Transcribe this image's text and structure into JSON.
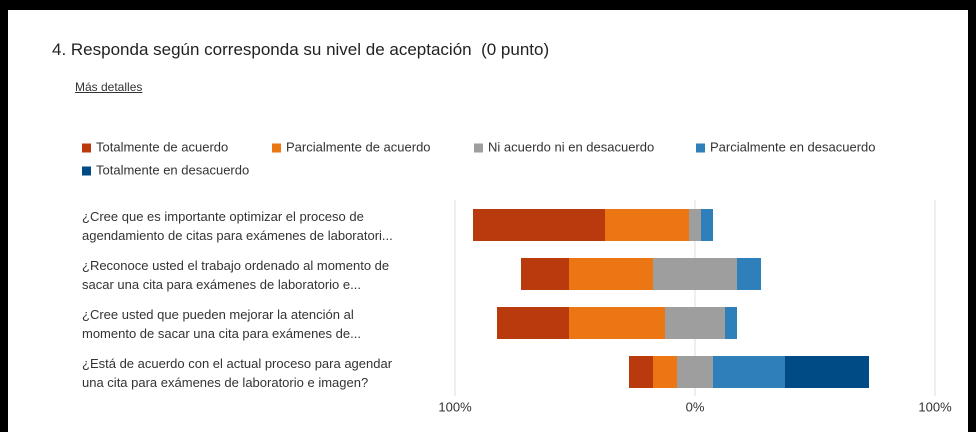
{
  "chart_data": {
    "type": "diverging_bar",
    "title": "4. Responda según corresponda su nivel de aceptación  (0 punto)",
    "details_link": "Más detalles",
    "categories": [
      "¿Cree que es importante optimizar el proceso de\nagendamiento de citas para exámenes de laboratori...",
      "¿Reconoce usted el trabajo ordenado al momento de\nsacar una cita para exámenes de laboratorio e...",
      "¿Cree usted que pueden mejorar la atención al\nmomento de sacar una cita para exámenes de...",
      "¿Está de acuerdo con el actual proceso para agendar\nuna cita para exámenes de laboratorio e imagen?"
    ],
    "series": [
      {
        "name": "Totalmente de acuerdo",
        "color": "#b93a0c",
        "values": [
          55,
          20,
          30,
          10
        ]
      },
      {
        "name": "Parcialmente de acuerdo",
        "color": "#ec7614",
        "values": [
          35,
          35,
          40,
          10
        ]
      },
      {
        "name": "Ni acuerdo ni en desacuerdo",
        "color": "#9e9e9e",
        "values": [
          5,
          35,
          25,
          15
        ]
      },
      {
        "name": "Parcialmente en desacuerdo",
        "color": "#2f7fbb",
        "values": [
          5,
          10,
          5,
          30
        ]
      },
      {
        "name": "Totalmente en desacuerdo",
        "color": "#004a85",
        "values": [
          0,
          0,
          0,
          35
        ]
      }
    ],
    "neutral_series": 2,
    "xlim": [
      -100,
      100
    ],
    "xticks": [
      {
        "value": -100,
        "label": "100%"
      },
      {
        "value": 0,
        "label": "0%"
      },
      {
        "value": 100,
        "label": "100%"
      }
    ],
    "grid": true
  }
}
